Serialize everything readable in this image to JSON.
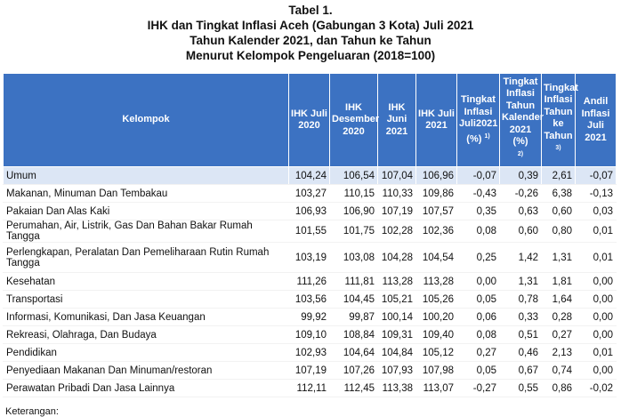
{
  "titles": {
    "t1": "Tabel 1.",
    "t2": "IHK dan Tingkat Inflasi Aceh (Gabungan 3 Kota) Juli 2021",
    "t3": "Tahun Kalender 2021, dan Tahun ke Tahun",
    "t4": "Menurut Kelompok Pengeluaran (2018=100)"
  },
  "table": {
    "headers": {
      "kelompok": "Kelompok",
      "ihk_2020": "IHK Juli 2020",
      "ihk_des": "IHK Desember 2020",
      "ihk_jun": "IHK Juni 2021",
      "ihk_jul": "IHK Juli 2021",
      "inf_jul": "Tingkat Inflasi Juli2021 (%)",
      "inf_jul_sup": "1)",
      "inf_kal": "Tingkat Inflasi Tahun Kalender 2021 (%)",
      "inf_kal_sup": "2)",
      "inf_yoy": "Tingkat Inflasi Tahun ke Tahun",
      "inf_yoy_sup": "3)",
      "andil": "Andil Inflasi Juli 2021"
    },
    "rows": [
      {
        "name": "Umum",
        "v1": "104,24",
        "v2": "106,54",
        "v3": "107,04",
        "v4": "106,96",
        "v5": "-0,07",
        "v6": "0,39",
        "v7": "2,61",
        "v8": "-0,07"
      },
      {
        "name": "Makanan, Minuman Dan Tembakau",
        "v1": "103,27",
        "v2": "110,15",
        "v3": "110,33",
        "v4": "109,86",
        "v5": "-0,43",
        "v6": "-0,26",
        "v7": "6,38",
        "v8": "-0,13"
      },
      {
        "name": "Pakaian Dan Alas Kaki",
        "v1": "106,93",
        "v2": "106,90",
        "v3": "107,19",
        "v4": "107,57",
        "v5": "0,35",
        "v6": "0,63",
        "v7": "0,60",
        "v8": "0,03"
      },
      {
        "name": "Perumahan, Air, Listrik, Gas Dan Bahan Bakar Rumah Tangga",
        "v1": "101,55",
        "v2": "101,75",
        "v3": "102,28",
        "v4": "102,36",
        "v5": "0,08",
        "v6": "0,60",
        "v7": "0,80",
        "v8": "0,01"
      },
      {
        "name": "Perlengkapan, Peralatan Dan Pemeliharaan Rutin Rumah Tangga",
        "v1": "103,19",
        "v2": "103,08",
        "v3": "104,28",
        "v4": "104,54",
        "v5": "0,25",
        "v6": "1,42",
        "v7": "1,31",
        "v8": "0,01"
      },
      {
        "name": "Kesehatan",
        "v1": "111,26",
        "v2": "111,81",
        "v3": "113,28",
        "v4": "113,28",
        "v5": "0,00",
        "v6": "1,31",
        "v7": "1,81",
        "v8": "0,00"
      },
      {
        "name": "Transportasi",
        "v1": "103,56",
        "v2": "104,45",
        "v3": "105,21",
        "v4": "105,26",
        "v5": "0,05",
        "v6": "0,78",
        "v7": "1,64",
        "v8": "0,00"
      },
      {
        "name": "Informasi, Komunikasi, Dan Jasa Keuangan",
        "v1": "99,92",
        "v2": "99,87",
        "v3": "100,14",
        "v4": "100,20",
        "v5": "0,06",
        "v6": "0,33",
        "v7": "0,28",
        "v8": "0,00"
      },
      {
        "name": "Rekreasi, Olahraga, Dan Budaya",
        "v1": "109,10",
        "v2": "108,84",
        "v3": "109,31",
        "v4": "109,40",
        "v5": "0,08",
        "v6": "0,51",
        "v7": "0,27",
        "v8": "0,00"
      },
      {
        "name": "Pendidikan",
        "v1": "102,93",
        "v2": "104,64",
        "v3": "104,84",
        "v4": "105,12",
        "v5": "0,27",
        "v6": "0,46",
        "v7": "2,13",
        "v8": "0,01"
      },
      {
        "name": "Penyediaan Makanan Dan Minuman/restoran",
        "v1": "107,19",
        "v2": "107,26",
        "v3": "107,93",
        "v4": "107,98",
        "v5": "0,05",
        "v6": "0,67",
        "v7": "0,74",
        "v8": "0,00"
      },
      {
        "name": "Perawatan Pribadi Dan Jasa Lainnya",
        "v1": "112,11",
        "v2": "112,45",
        "v3": "113,38",
        "v4": "113,07",
        "v5": "-0,27",
        "v6": "0,55",
        "v7": "0,86",
        "v8": "-0,02"
      }
    ]
  },
  "footer": {
    "cut_text": "Keterangan:"
  }
}
